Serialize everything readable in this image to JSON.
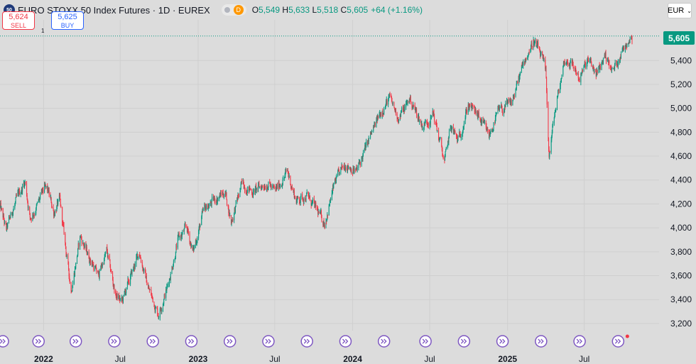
{
  "header": {
    "symbol_badge": "50",
    "title": "EURO STOXX 50 Index Futures · 1D · EUREX",
    "pill_letter": "D",
    "ohlc": {
      "o_label": "O",
      "o": "5,549",
      "h_label": "H",
      "h": "5,633",
      "l_label": "L",
      "l": "5,518",
      "c_label": "C",
      "c": "5,605",
      "change": "+64 (+1.16%)"
    }
  },
  "trade": {
    "sell_price": "5,624",
    "sell_label": "SELL",
    "spread": "1",
    "buy_price": "5,625",
    "buy_label": "BUY"
  },
  "currency": "EUR",
  "colors": {
    "up": "#089981",
    "down": "#f23645",
    "grid": "#cfcfcf",
    "event": "#7e57c2"
  },
  "chart_data": {
    "type": "candlestick",
    "y_axis": {
      "min": 3140,
      "max": 5740,
      "ticks": [
        3200,
        3400,
        3600,
        3800,
        4000,
        4200,
        4400,
        4600,
        4800,
        5000,
        5200,
        5400
      ]
    },
    "x_ticks": [
      {
        "date": "2022-01-01",
        "label": "2022",
        "bold": true
      },
      {
        "date": "2022-07-01",
        "label": "Jul",
        "bold": false
      },
      {
        "date": "2023-01-01",
        "label": "2023",
        "bold": true
      },
      {
        "date": "2023-07-01",
        "label": "Jul",
        "bold": false
      },
      {
        "date": "2024-01-01",
        "label": "2024",
        "bold": true
      },
      {
        "date": "2024-07-01",
        "label": "Jul",
        "bold": false
      },
      {
        "date": "2025-01-01",
        "label": "2025",
        "bold": true
      },
      {
        "date": "2025-07-01",
        "label": "Jul",
        "bold": false
      }
    ],
    "x_range": [
      "2021-09-20",
      "2025-10-22"
    ],
    "last_price": 5605,
    "last_price_label": "5,605",
    "price_path": [
      [
        "2021-09-20",
        4180
      ],
      [
        "2021-10-05",
        3980
      ],
      [
        "2021-10-20",
        4150
      ],
      [
        "2021-11-05",
        4290
      ],
      [
        "2021-11-18",
        4390
      ],
      [
        "2021-11-30",
        4080
      ],
      [
        "2021-12-15",
        4170
      ],
      [
        "2022-01-03",
        4330
      ],
      [
        "2022-01-12",
        4300
      ],
      [
        "2022-01-25",
        4130
      ],
      [
        "2022-02-08",
        4230
      ],
      [
        "2022-02-25",
        3750
      ],
      [
        "2022-03-07",
        3480
      ],
      [
        "2022-03-29",
        3930
      ],
      [
        "2022-04-10",
        3820
      ],
      [
        "2022-05-10",
        3600
      ],
      [
        "2022-05-30",
        3800
      ],
      [
        "2022-06-20",
        3440
      ],
      [
        "2022-07-05",
        3380
      ],
      [
        "2022-08-15",
        3800
      ],
      [
        "2022-09-05",
        3500
      ],
      [
        "2022-09-29",
        3280
      ],
      [
        "2022-10-20",
        3500
      ],
      [
        "2022-11-15",
        3900
      ],
      [
        "2022-12-05",
        4000
      ],
      [
        "2022-12-20",
        3800
      ],
      [
        "2023-01-15",
        4150
      ],
      [
        "2023-02-10",
        4240
      ],
      [
        "2023-03-06",
        4300
      ],
      [
        "2023-03-20",
        4050
      ],
      [
        "2023-04-15",
        4370
      ],
      [
        "2023-05-10",
        4300
      ],
      [
        "2023-06-15",
        4380
      ],
      [
        "2023-07-01",
        4300
      ],
      [
        "2023-07-31",
        4470
      ],
      [
        "2023-08-20",
        4230
      ],
      [
        "2023-09-15",
        4270
      ],
      [
        "2023-10-27",
        4040
      ],
      [
        "2023-11-20",
        4380
      ],
      [
        "2023-12-15",
        4540
      ],
      [
        "2024-01-10",
        4470
      ],
      [
        "2024-02-10",
        4750
      ],
      [
        "2024-03-10",
        4990
      ],
      [
        "2024-03-28",
        5080
      ],
      [
        "2024-04-19",
        4920
      ],
      [
        "2024-05-15",
        5080
      ],
      [
        "2024-06-14",
        4850
      ],
      [
        "2024-07-10",
        4950
      ],
      [
        "2024-08-05",
        4550
      ],
      [
        "2024-08-20",
        4850
      ],
      [
        "2024-09-06",
        4720
      ],
      [
        "2024-09-30",
        5030
      ],
      [
        "2024-10-20",
        4950
      ],
      [
        "2024-11-18",
        4770
      ],
      [
        "2024-12-10",
        4970
      ],
      [
        "2025-01-10",
        5040
      ],
      [
        "2025-02-10",
        5400
      ],
      [
        "2025-03-03",
        5560
      ],
      [
        "2025-03-20",
        5450
      ],
      [
        "2025-04-01",
        5300
      ],
      [
        "2025-04-09",
        4600
      ],
      [
        "2025-04-22",
        4950
      ],
      [
        "2025-05-15",
        5400
      ],
      [
        "2025-06-01",
        5380
      ],
      [
        "2025-06-20",
        5250
      ],
      [
        "2025-07-10",
        5400
      ],
      [
        "2025-08-01",
        5280
      ],
      [
        "2025-08-20",
        5460
      ],
      [
        "2025-09-05",
        5300
      ],
      [
        "2025-09-20",
        5420
      ],
      [
        "2025-10-10",
        5560
      ],
      [
        "2025-10-22",
        5605
      ]
    ],
    "events": [
      "2021-09-20",
      "2021-12-20",
      "2022-03-18",
      "2022-06-17",
      "2022-09-16",
      "2022-12-16",
      "2023-03-17",
      "2023-06-16",
      "2023-09-15",
      "2023-12-15",
      "2024-03-15",
      "2024-06-21",
      "2024-09-20",
      "2024-12-20",
      "2025-03-21",
      "2025-06-20",
      "2025-09-19"
    ]
  }
}
